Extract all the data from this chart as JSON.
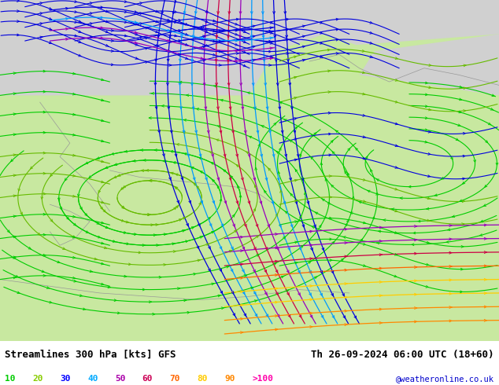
{
  "title_left": "Streamlines 300 hPa [kts] GFS",
  "title_right": "Th 26-09-2024 06:00 UTC (18+60)",
  "credit": "@weatheronline.co.uk",
  "legend_values": [
    "10",
    "20",
    "30",
    "40",
    "50",
    "60",
    "70",
    "80",
    "90",
    ">100"
  ],
  "legend_colors": [
    "#00cc00",
    "#88cc00",
    "#0000ff",
    "#00aaff",
    "#aa00aa",
    "#cc0055",
    "#ff6600",
    "#ffcc00",
    "#ff8800",
    "#ff00aa"
  ],
  "bg_top_color": "#d8d8d8",
  "bg_land_color": "#c8e8a0",
  "border_color": "#aaaaaa",
  "font_color": "#000000",
  "credit_color": "#0000cc",
  "speed_thresholds": [
    10,
    20,
    30,
    40,
    50,
    60,
    70,
    80,
    90,
    100
  ],
  "speed_colors": [
    "#00cc00",
    "#88cc00",
    "#0000dd",
    "#0099ff",
    "#9900aa",
    "#cc0044",
    "#ff6600",
    "#ffcc00",
    "#ff8800",
    "#ff00aa"
  ]
}
